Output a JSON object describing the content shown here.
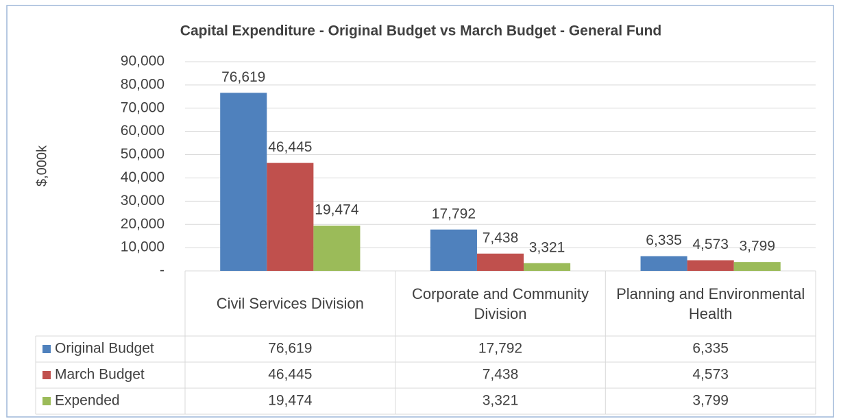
{
  "chart_data": {
    "type": "bar",
    "title": "Capital Expenditure - Original Budget vs March Budget - General Fund",
    "y_label": "$,000k",
    "categories": [
      "Civil Services Division",
      "Corporate and Community Division",
      "Planning and Environmental Health"
    ],
    "series": [
      {
        "name": "Original Budget",
        "color": "#4f81bd",
        "values": [
          76619,
          17792,
          6335
        ],
        "value_labels": [
          "76,619",
          "17,792",
          "6,335"
        ]
      },
      {
        "name": "March Budget",
        "color": "#c0504d",
        "values": [
          46445,
          7438,
          4573
        ],
        "value_labels": [
          "46,445",
          "7,438",
          "4,573"
        ]
      },
      {
        "name": "Expended",
        "color": "#9bbb59",
        "values": [
          19474,
          3321,
          3799
        ],
        "value_labels": [
          "19,474",
          "3,321",
          "3,799"
        ]
      }
    ],
    "ylim": [
      0,
      90000
    ],
    "yticks": [
      {
        "value": 0,
        "label": "-"
      },
      {
        "value": 10000,
        "label": "10,000"
      },
      {
        "value": 20000,
        "label": "20,000"
      },
      {
        "value": 30000,
        "label": "30,000"
      },
      {
        "value": 40000,
        "label": "40,000"
      },
      {
        "value": 50000,
        "label": "50,000"
      },
      {
        "value": 60000,
        "label": "60,000"
      },
      {
        "value": 70000,
        "label": "70,000"
      },
      {
        "value": 80000,
        "label": "80,000"
      },
      {
        "value": 90000,
        "label": "90,000"
      }
    ],
    "grid": true,
    "data_table": true
  }
}
